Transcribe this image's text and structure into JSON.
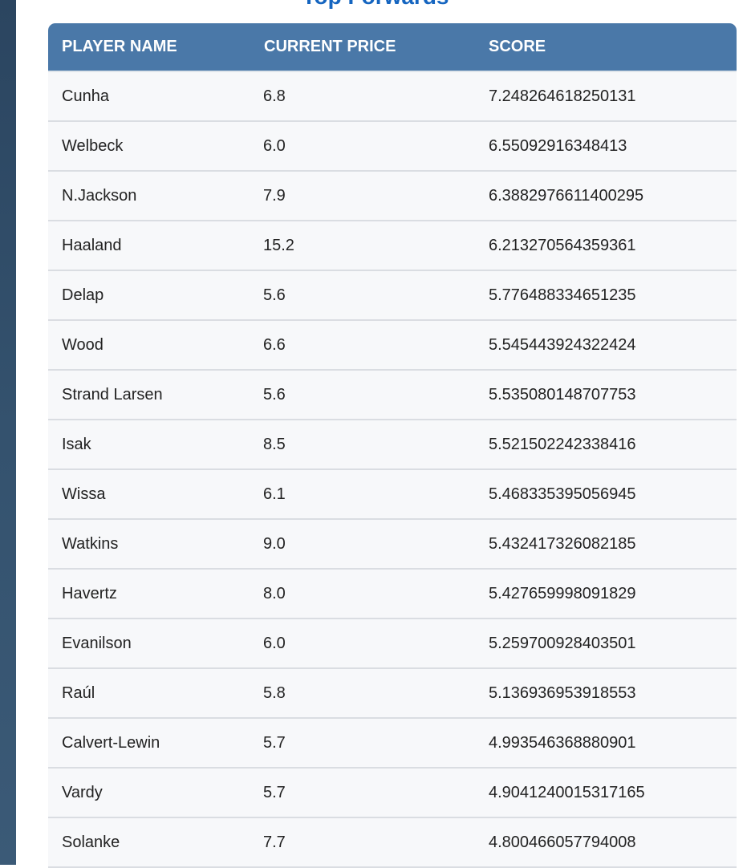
{
  "title": "Top Forwards",
  "table": {
    "headers": [
      "PLAYER NAME",
      "CURRENT PRICE",
      "SCORE"
    ],
    "rows": [
      [
        "Cunha",
        "6.8",
        "7.248264618250131"
      ],
      [
        "Welbeck",
        "6.0",
        "6.55092916348413"
      ],
      [
        "N.Jackson",
        "7.9",
        "6.3882976611400295"
      ],
      [
        "Haaland",
        "15.2",
        "6.213270564359361"
      ],
      [
        "Delap",
        "5.6",
        "5.776488334651235"
      ],
      [
        "Wood",
        "6.6",
        "5.545443924322424"
      ],
      [
        "Strand Larsen",
        "5.6",
        "5.535080148707753"
      ],
      [
        "Isak",
        "8.5",
        "5.521502242338416"
      ],
      [
        "Wissa",
        "6.1",
        "5.468335395056945"
      ],
      [
        "Watkins",
        "9.0",
        "5.432417326082185"
      ],
      [
        "Havertz",
        "8.0",
        "5.427659998091829"
      ],
      [
        "Evanilson",
        "6.0",
        "5.259700928403501"
      ],
      [
        "Raúl",
        "5.8",
        "5.136936953918553"
      ],
      [
        "Calvert-Lewin",
        "5.7",
        "4.993546368880901"
      ],
      [
        "Vardy",
        "5.7",
        "4.9041240015317165"
      ],
      [
        "Solanke",
        "7.7",
        "4.800466057794008"
      ]
    ]
  },
  "colors": {
    "header_bg": "#4a78a8",
    "title": "#1565c0",
    "row_bg": "#f7f8fa",
    "sidebar": "#2b4560"
  }
}
